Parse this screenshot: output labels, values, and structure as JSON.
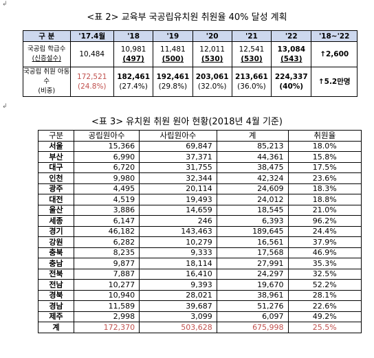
{
  "table1": {
    "title": "<표 2> 교육부 국공립유치원 취원율 40% 달성 계획",
    "headers": [
      "구 분",
      "'17.4월",
      "'18",
      "'19",
      "'20",
      "'21",
      "'22",
      "'18~'22"
    ],
    "row1": {
      "label_line1": "국공립 학급수",
      "label_line2": "(신증설수)",
      "c17": "10,484",
      "c18": "10,981",
      "c18b": "(497)",
      "c19": "11,481",
      "c19b": "(500)",
      "c20": "12,011",
      "c20b": "(530)",
      "c21": "12,541",
      "c21b": "(530)",
      "c22": "13,084",
      "c22b": "(543)",
      "total": "↑2,600"
    },
    "row2": {
      "label_line1": "국공립 취원 아동수",
      "label_line2": "(비중)",
      "c17": "172,521",
      "c17b": "(24.8%)",
      "c18": "182,461",
      "c18b": "(27.4%)",
      "c19": "192,461",
      "c19b": "(29.8%)",
      "c20": "203,061",
      "c20b": "(32.0%)",
      "c21": "213,661",
      "c21b": "(36.0%)",
      "c22": "224,337",
      "c22b": "(40%)",
      "total": "↑5.2만명"
    }
  },
  "table2": {
    "title": "<표 3> 유치원 취원 원아 현황(2018년 4월 기준)",
    "headers": [
      "구분",
      "공립원아수",
      "사립원아수",
      "계",
      "취원율"
    ],
    "rows": [
      [
        "서울",
        "15,366",
        "69,847",
        "85,213",
        "18.0%"
      ],
      [
        "부산",
        "6,990",
        "37,371",
        "44,361",
        "15.8%"
      ],
      [
        "대구",
        "6,720",
        "31,755",
        "38,475",
        "17.5%"
      ],
      [
        "인천",
        "9,980",
        "32,344",
        "42,324",
        "23.6%"
      ],
      [
        "광주",
        "4,495",
        "20,114",
        "24,609",
        "18.3%"
      ],
      [
        "대전",
        "4,519",
        "19,493",
        "24,012",
        "18.8%"
      ],
      [
        "울산",
        "3,886",
        "14,659",
        "18,545",
        "21.0%"
      ],
      [
        "세종",
        "6,147",
        "246",
        "6,393",
        "96.2%"
      ],
      [
        "경기",
        "46,182",
        "143,463",
        "189,645",
        "24.4%"
      ],
      [
        "강원",
        "6,282",
        "10,279",
        "16,561",
        "37.9%"
      ],
      [
        "충북",
        "8,235",
        "9,333",
        "17,568",
        "46.9%"
      ],
      [
        "충남",
        "9,877",
        "18,114",
        "27,991",
        "35.3%"
      ],
      [
        "전북",
        "7,887",
        "16,410",
        "24,297",
        "32.5%"
      ],
      [
        "전남",
        "10,277",
        "9,393",
        "19,670",
        "52.2%"
      ],
      [
        "경북",
        "10,940",
        "28,021",
        "38,961",
        "28.1%"
      ],
      [
        "경남",
        "11,589",
        "39,687",
        "51,276",
        "22.6%"
      ],
      [
        "제주",
        "2,998",
        "3,099",
        "6,097",
        "49.2%"
      ]
    ],
    "total": [
      "계",
      "172,370",
      "503,628",
      "675,998",
      "25.5%"
    ]
  },
  "colors": {
    "header_bg": "#cdd8ee",
    "accent_red": "#c0504d"
  }
}
